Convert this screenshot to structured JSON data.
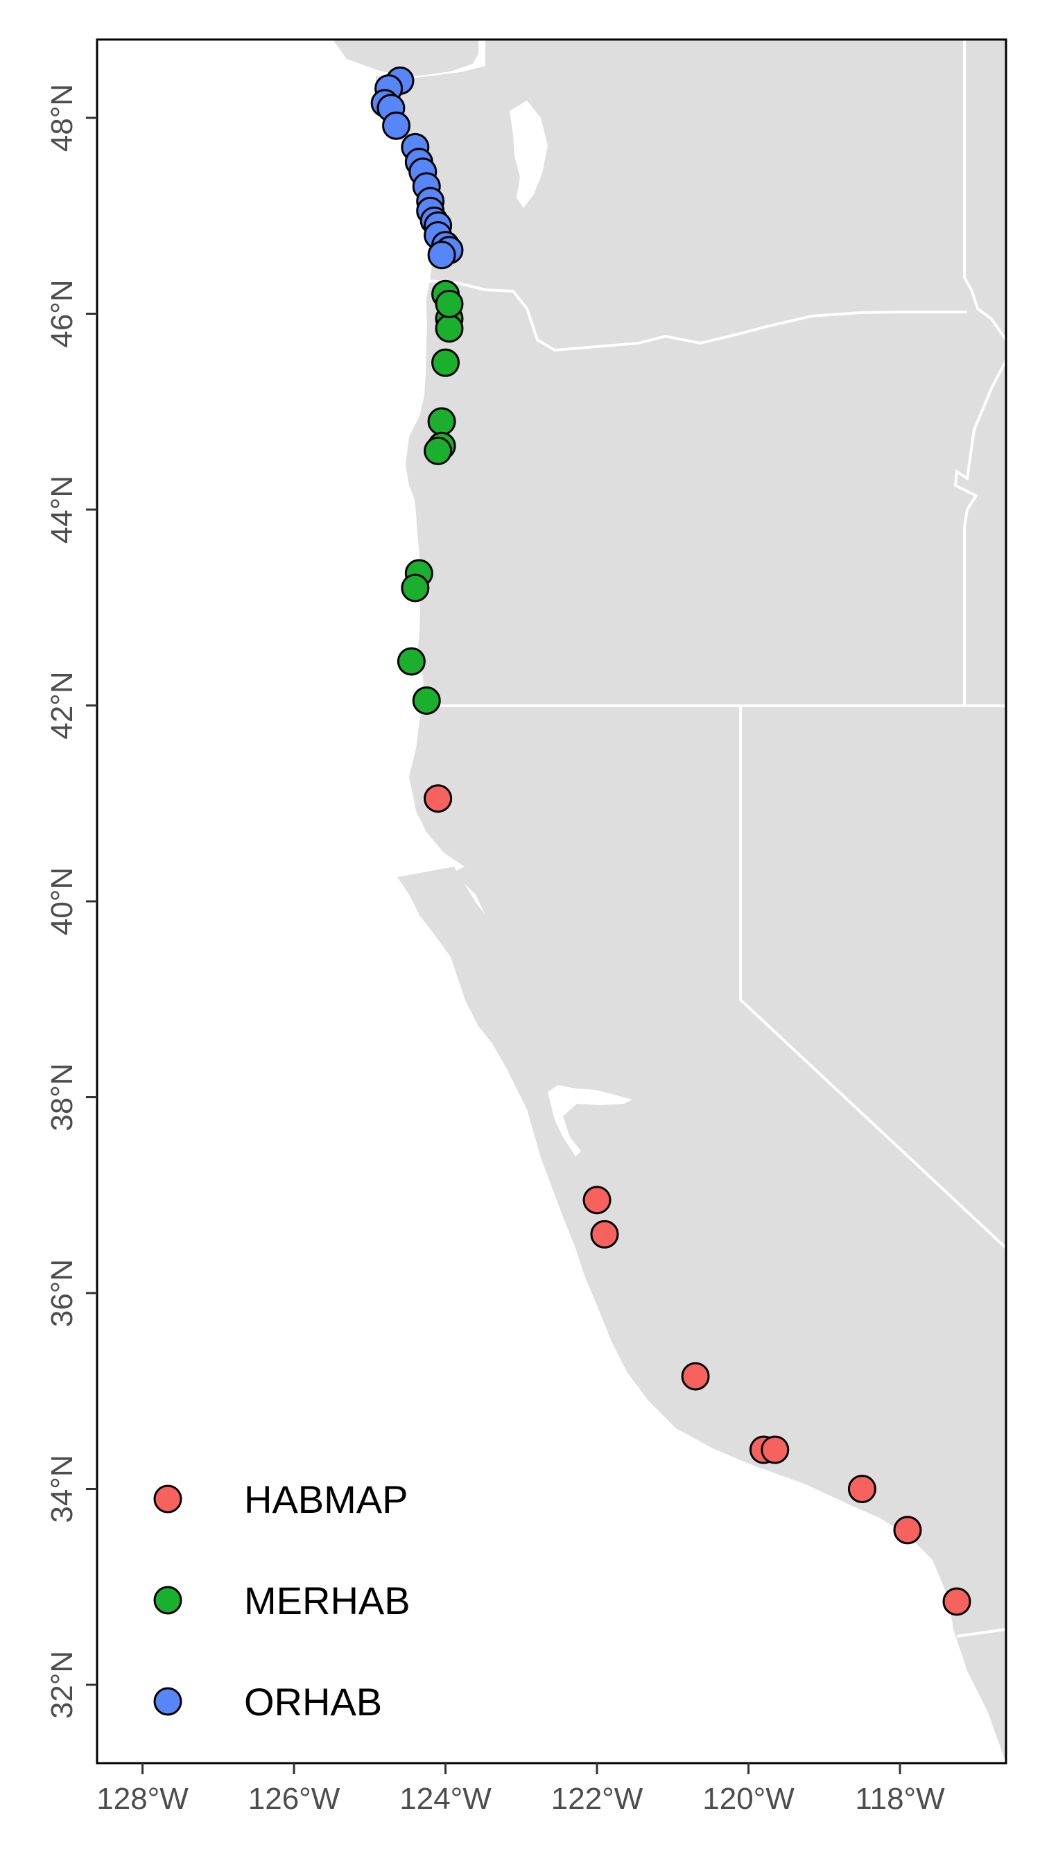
{
  "map": {
    "colors": {
      "land": "#dedede",
      "ocean": "#ffffff",
      "border": "#ffffff",
      "frame": "#000000",
      "point_outline": "#000000"
    },
    "extent": {
      "lon": [
        -128.6,
        -116.6
      ],
      "lat": [
        31.2,
        48.8
      ]
    },
    "axis_labels": {
      "x": [
        {
          "value": -128,
          "label": "128°W"
        },
        {
          "value": -126,
          "label": "126°W"
        },
        {
          "value": -124,
          "label": "124°W"
        },
        {
          "value": -122,
          "label": "122°W"
        },
        {
          "value": -120,
          "label": "120°W"
        },
        {
          "value": -118,
          "label": "118°W"
        }
      ],
      "y": [
        {
          "value": 32,
          "label": "32°N"
        },
        {
          "value": 34,
          "label": "34°N"
        },
        {
          "value": 36,
          "label": "36°N"
        },
        {
          "value": 38,
          "label": "38°N"
        },
        {
          "value": 40,
          "label": "40°N"
        },
        {
          "value": 42,
          "label": "42°N"
        },
        {
          "value": 44,
          "label": "44°N"
        },
        {
          "value": 46,
          "label": "46°N"
        },
        {
          "value": 48,
          "label": "48°N"
        }
      ]
    },
    "legend": {
      "placement": "bottom-left",
      "items": [
        {
          "label": "HABMAP",
          "color": "#f8625e"
        },
        {
          "label": "MERHAB",
          "color": "#1ab02d"
        },
        {
          "label": "ORHAB",
          "color": "#5686f7"
        }
      ]
    },
    "series": [
      {
        "program": "HABMAP",
        "color": "#f8625e",
        "points": [
          {
            "lon": -124.1,
            "lat": 41.05
          },
          {
            "lon": -122.0,
            "lat": 36.95
          },
          {
            "lon": -121.9,
            "lat": 36.6
          },
          {
            "lon": -120.7,
            "lat": 35.15
          },
          {
            "lon": -119.8,
            "lat": 34.4
          },
          {
            "lon": -119.65,
            "lat": 34.4
          },
          {
            "lon": -118.5,
            "lat": 34.0
          },
          {
            "lon": -117.9,
            "lat": 33.58
          },
          {
            "lon": -117.25,
            "lat": 32.85
          }
        ]
      },
      {
        "program": "MERHAB",
        "color": "#1ab02d",
        "points": [
          {
            "lon": -124.0,
            "lat": 46.2
          },
          {
            "lon": -123.95,
            "lat": 45.95
          },
          {
            "lon": -123.95,
            "lat": 45.85
          },
          {
            "lon": -123.95,
            "lat": 46.1
          },
          {
            "lon": -124.0,
            "lat": 45.5
          },
          {
            "lon": -124.05,
            "lat": 44.9
          },
          {
            "lon": -124.05,
            "lat": 44.65
          },
          {
            "lon": -124.1,
            "lat": 44.6
          },
          {
            "lon": -124.35,
            "lat": 43.35
          },
          {
            "lon": -124.4,
            "lat": 43.2
          },
          {
            "lon": -124.45,
            "lat": 42.45
          },
          {
            "lon": -124.25,
            "lat": 42.05
          }
        ]
      },
      {
        "program": "ORHAB",
        "color": "#5686f7",
        "points": [
          {
            "lon": -124.6,
            "lat": 48.38
          },
          {
            "lon": -124.75,
            "lat": 48.3
          },
          {
            "lon": -124.8,
            "lat": 48.15
          },
          {
            "lon": -124.72,
            "lat": 48.1
          },
          {
            "lon": -124.65,
            "lat": 47.92
          },
          {
            "lon": -124.4,
            "lat": 47.7
          },
          {
            "lon": -124.35,
            "lat": 47.55
          },
          {
            "lon": -124.3,
            "lat": 47.45
          },
          {
            "lon": -124.25,
            "lat": 47.3
          },
          {
            "lon": -124.2,
            "lat": 47.15
          },
          {
            "lon": -124.2,
            "lat": 47.05
          },
          {
            "lon": -124.15,
            "lat": 46.95
          },
          {
            "lon": -124.1,
            "lat": 46.9
          },
          {
            "lon": -124.1,
            "lat": 46.8
          },
          {
            "lon": -124.0,
            "lat": 46.7
          },
          {
            "lon": -123.95,
            "lat": 46.65
          },
          {
            "lon": -124.05,
            "lat": 46.6
          }
        ]
      }
    ]
  }
}
